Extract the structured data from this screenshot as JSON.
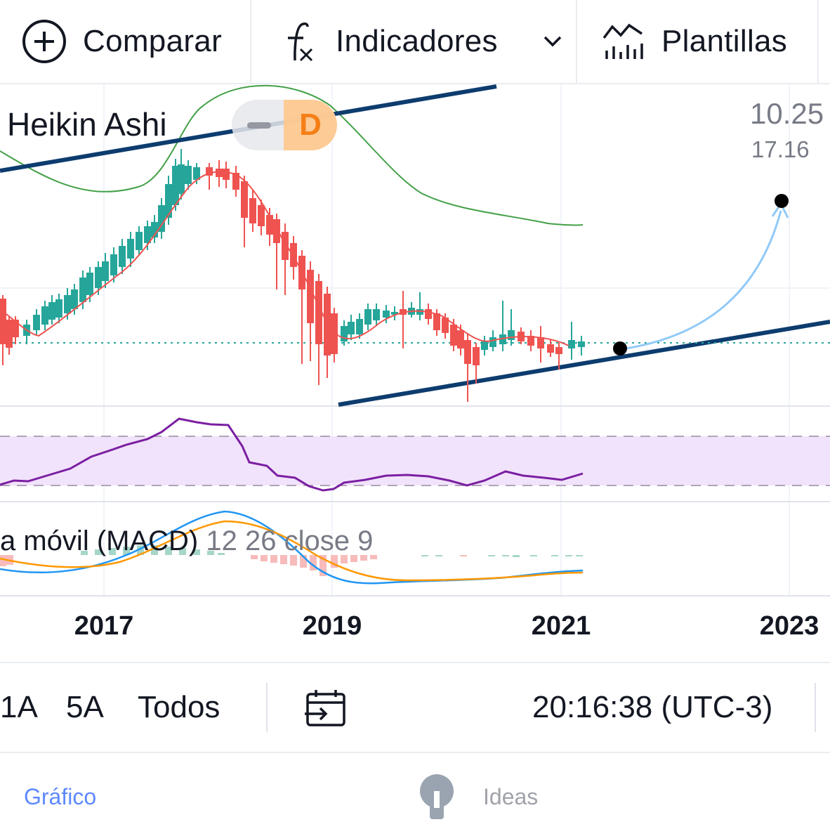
{
  "toolbar": {
    "compare_label": "Comparar",
    "indicators_label": "Indicadores",
    "templates_label": "Plantillas"
  },
  "chart": {
    "chart_type_label": "Heikin Ashi",
    "interval_label": "D",
    "price_main": "10.25",
    "price_sub": "17.16",
    "macd_label": "a móvil (MACD)",
    "macd_params": "12 26 close 9",
    "years": [
      "2017",
      "2019",
      "2021",
      "2023"
    ],
    "colors": {
      "up": "#26a69a",
      "down": "#ef5350",
      "ma": "#ef5350",
      "green_line": "#43a047",
      "trendline": "#0d3c6e",
      "rsi": "#7b1fa2",
      "rsi_band": "#f1e3fb",
      "macd": "#2196f3",
      "signal": "#ff9800"
    }
  },
  "rangebar": {
    "r1": "1A",
    "r2": "5A",
    "r3": "Todos",
    "clock": "20:16:38 (UTC-3)"
  },
  "bottomnav": {
    "chart_label": "Gráfico",
    "ideas_label": "Ideas"
  }
}
